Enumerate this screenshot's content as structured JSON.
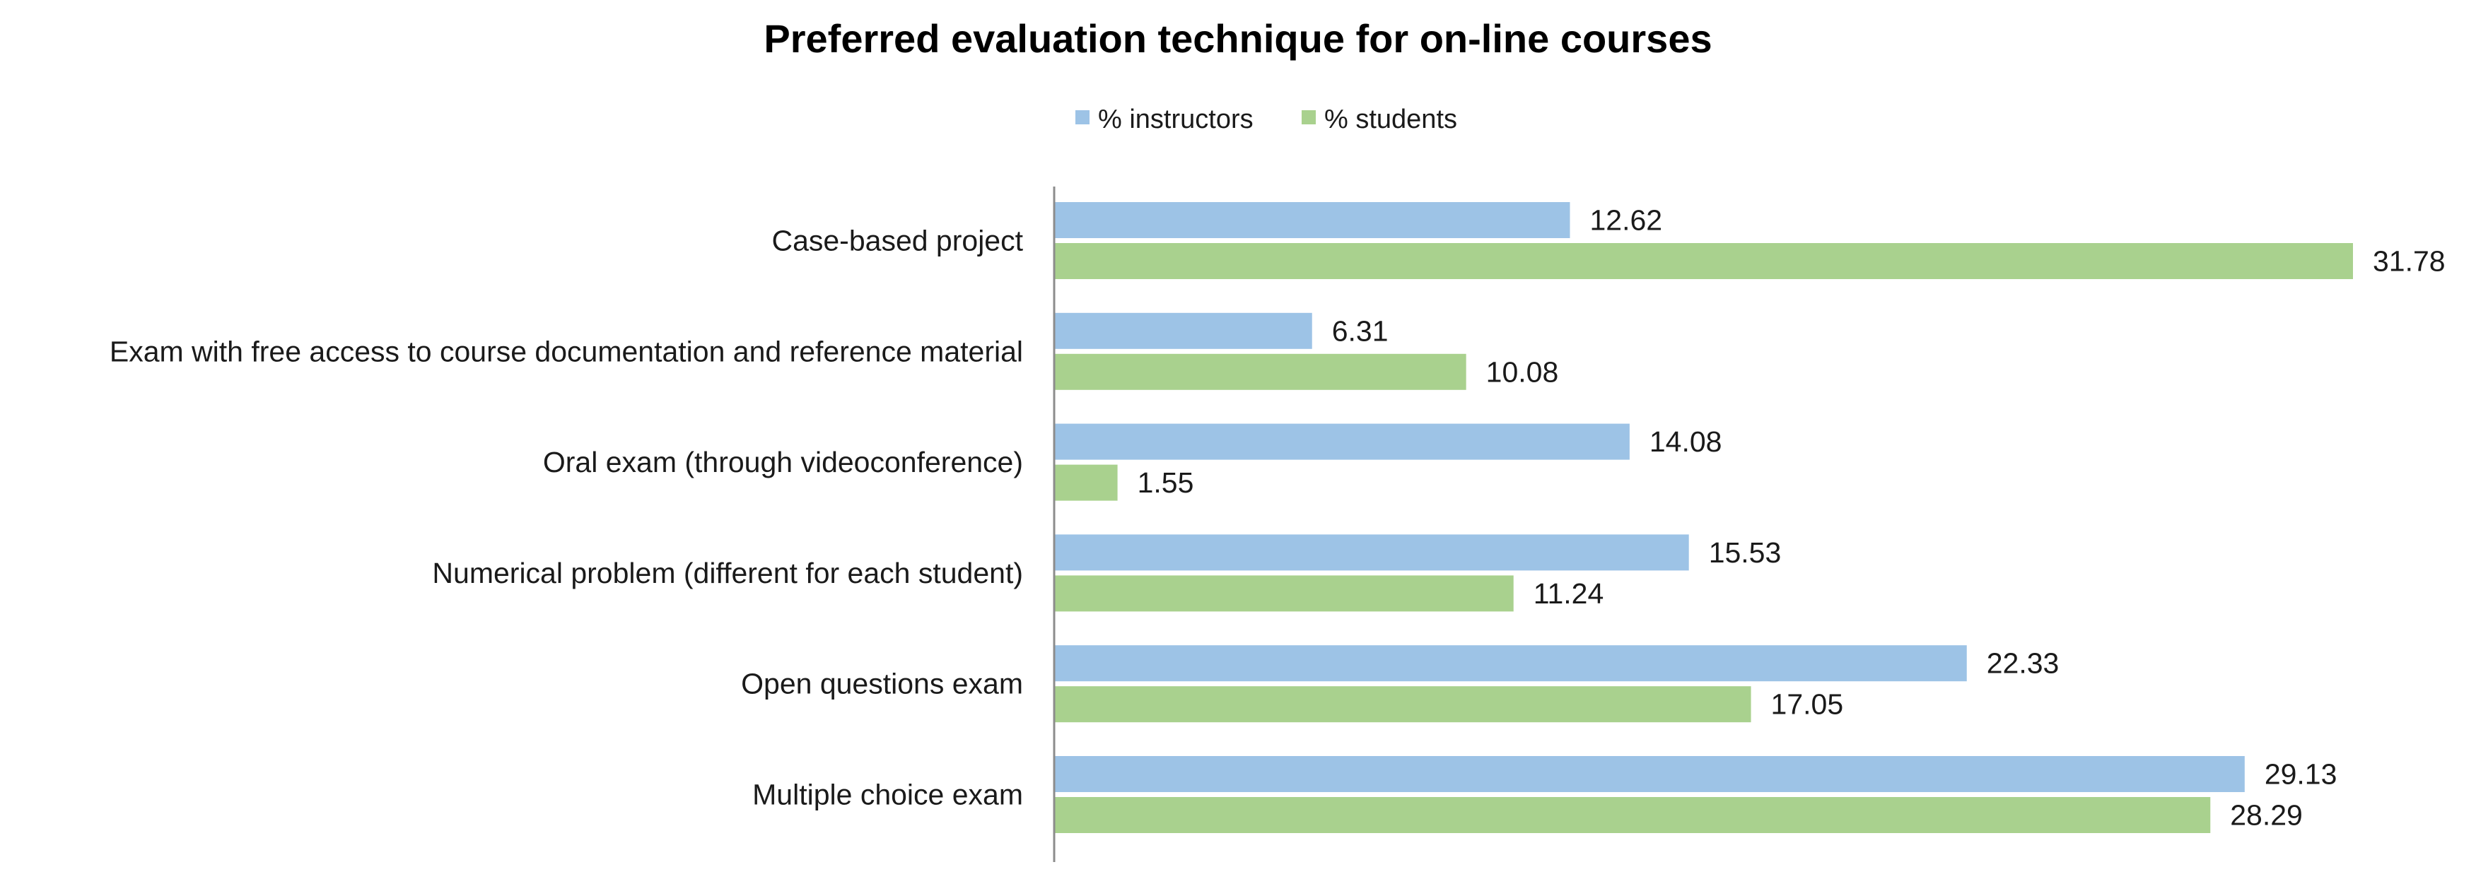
{
  "chart_data": {
    "type": "bar",
    "orientation": "horizontal",
    "title": "Preferred evaluation technique for on-line courses",
    "xlabel": "",
    "ylabel": "",
    "xlim": [
      0,
      31.78
    ],
    "grid": false,
    "legend_position": "top-center",
    "categories": [
      "Case-based project",
      "Exam with free access to course documentation and reference material",
      "Oral exam (through videoconference)",
      "Numerical problem (different for each student)",
      "Open questions exam",
      "Multiple choice exam"
    ],
    "series": [
      {
        "name": "% instructors",
        "color": "#9dc3e6",
        "values": [
          12.62,
          6.31,
          14.08,
          15.53,
          22.33,
          29.13
        ],
        "labels": [
          "12.62",
          "6.31",
          "14.08",
          "15.53",
          "22.33",
          "29.13"
        ]
      },
      {
        "name": "% students",
        "color": "#a9d18e",
        "values": [
          31.78,
          10.08,
          1.55,
          11.24,
          17.05,
          28.29
        ],
        "labels": [
          "31.78",
          "10.08",
          "1.55",
          "11.24",
          "17.05",
          "28.29"
        ]
      }
    ]
  }
}
